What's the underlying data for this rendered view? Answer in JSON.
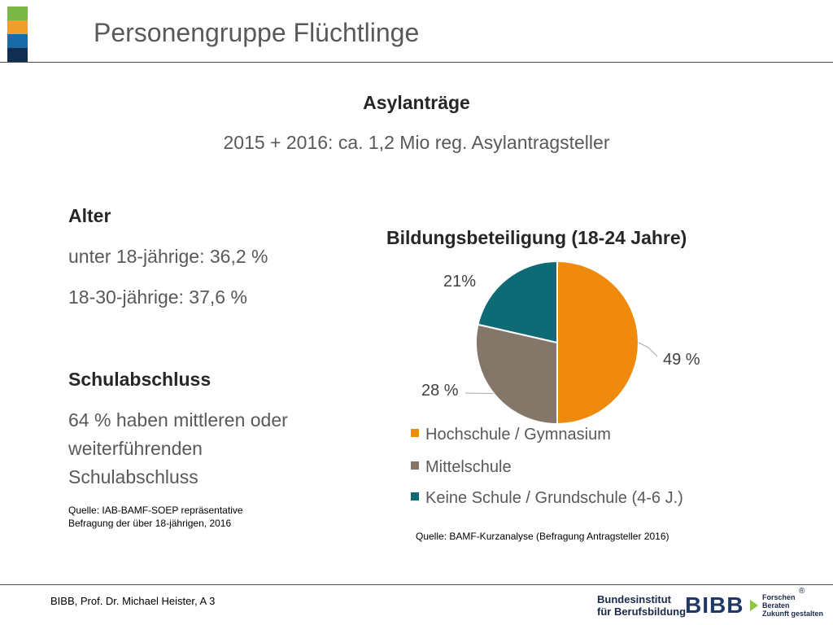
{
  "header": {
    "title": "Personengruppe Flüchtlinge",
    "color_bar": [
      "#7ab648",
      "#f0a02a",
      "#1a6aa6",
      "#0f2e52"
    ]
  },
  "asyl": {
    "heading": "Asylanträge",
    "text": "2015 + 2016: ca. 1,2 Mio reg. Asylantragsteller"
  },
  "left": {
    "alter_heading": "Alter",
    "alter_line1": "unter 18-jährige: 36,2 %",
    "alter_line2": "18-30-jährige: 37,6 %",
    "schul_heading": "Schulabschluss",
    "schul_line1": "64 % haben mittleren oder",
    "schul_line2": "weiterführenden",
    "schul_line3": "Schulabschluss",
    "source_line1": "Quelle: IAB-BAMF-SOEP repräsentative",
    "source_line2": "Befragung der über 18-jährigen, 2016"
  },
  "chart_data": {
    "type": "pie",
    "title": "Bildungsbeteiligung (18-24 Jahre)",
    "categories": [
      "Hochschule / Gymnasium",
      "Mittelschule",
      "Keine Schule / Grundschule (4-6 J.)"
    ],
    "values": [
      49,
      28,
      21
    ],
    "data_labels": [
      "49 %",
      "28 %",
      "21%"
    ],
    "colors": [
      "#ef8a0c",
      "#85766a",
      "#0e6a74"
    ],
    "legend_position": "bottom",
    "source": "Quelle: BAMF-Kurzanalyse (Befragung Antragsteller 2016)"
  },
  "footer": {
    "text": "BIBB, Prof. Dr. Michael Heister, A 3",
    "logo_org_line1": "Bundesinstitut",
    "logo_org_line2": "für Berufsbildung",
    "logo_mark": "BIBB",
    "logo_tag1": "Forschen",
    "logo_tag2": "Beraten",
    "logo_tag3": "Zukunft gestalten",
    "logo_reg": "®"
  }
}
